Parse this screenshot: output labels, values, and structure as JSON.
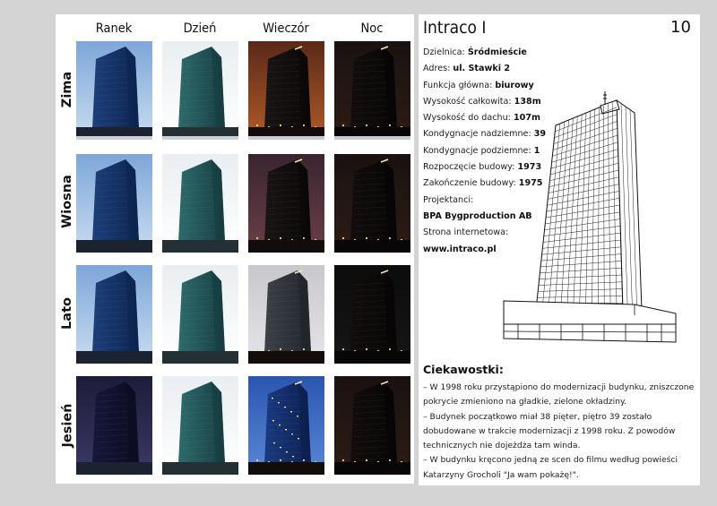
{
  "columns": [
    "Ranek",
    "Dzień",
    "Wieczór",
    "Noc"
  ],
  "rows": [
    "Zima",
    "Wiosna",
    "Lato",
    "Jesień"
  ],
  "title": "Intraco I",
  "page_number": "10",
  "info": [
    {
      "label": "Dzielnica: ",
      "value": "Śródmieście"
    },
    {
      "label": "Adres: ",
      "value": "ul. Stawki 2"
    },
    {
      "label": "Funkcja główna: ",
      "value": "biurowy"
    },
    {
      "label": "Wysokość całkowita: ",
      "value": "138m"
    },
    {
      "label": "Wysokość do dachu: ",
      "value": "107m"
    },
    {
      "label": "Kondygnacje nadziemne: ",
      "value": "39"
    },
    {
      "label": "Kondygnacje podziemne: ",
      "value": "1"
    },
    {
      "label": "Rozpoczęcie budowy: ",
      "value": "1973"
    },
    {
      "label": "Zakończenie budowy: ",
      "value": "1975"
    },
    {
      "label": "Projektanci:",
      "value": ""
    },
    {
      "label": "",
      "value": "BPA Bygproduction AB"
    },
    {
      "label": "Strona internetowa:",
      "value": ""
    },
    {
      "label": "",
      "value": "www.intraco.pl"
    }
  ],
  "facts_title": "Ciekawostki:",
  "facts": [
    "– W 1998 roku przystąpiono do modernizacji budynku, zniszczone pokrycie zmieniono na gładkie, zielone okładziny.",
    "– Budynek początkowo miał 38 pięter, piętro 39 zostało dobudowane w trakcie modernizacji z 1998 roku. Z powodów technicznych nie dojeżdża tam winda.",
    "– W budynku kręcono jedną ze scen do filmu według powieści Katarzyny Grocholi \"Ja wam pokażę!\"."
  ]
}
